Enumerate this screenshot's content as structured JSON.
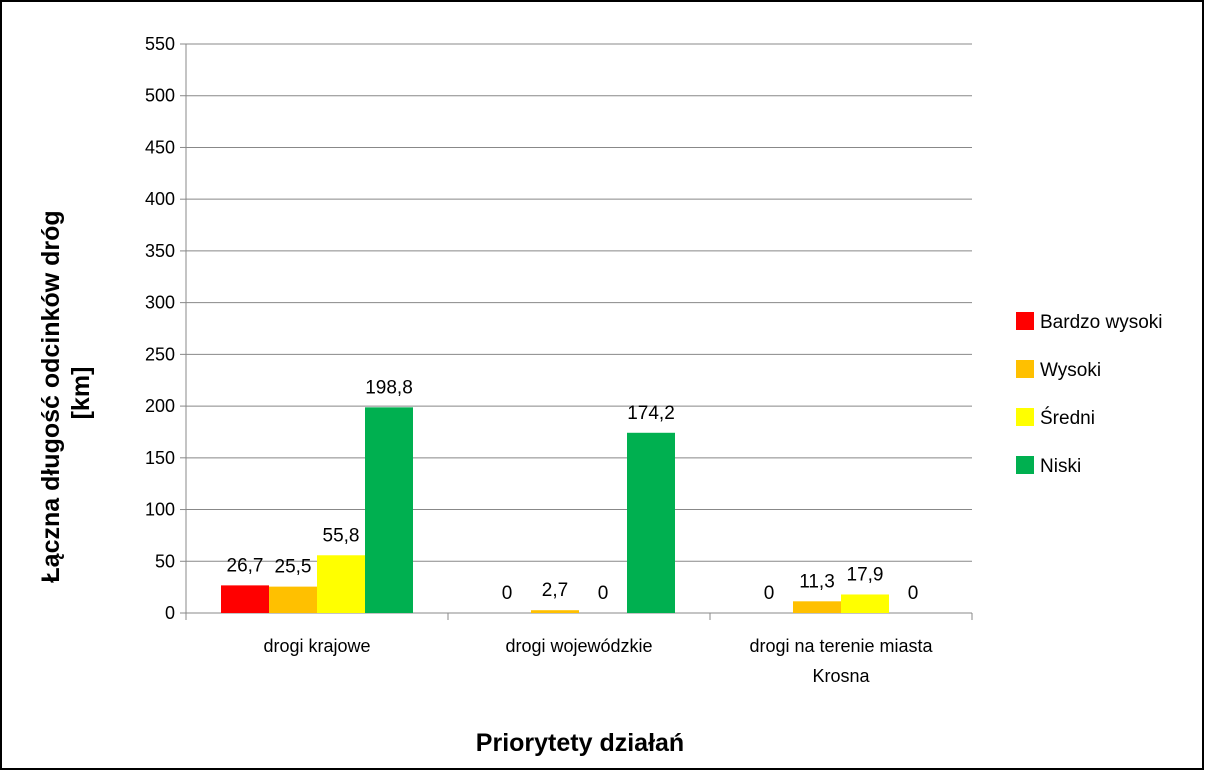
{
  "chart_data": {
    "type": "bar",
    "title": "",
    "xlabel": "Priorytety działań",
    "ylabel_lines": [
      "Łączna długość odcinków dróg",
      "[km]"
    ],
    "ylim": [
      0,
      550
    ],
    "yticks": [
      0,
      50,
      100,
      150,
      200,
      250,
      300,
      350,
      400,
      450,
      500,
      550
    ],
    "grid": true,
    "legend_position": "right",
    "categories": [
      [
        "drogi krajowe"
      ],
      [
        "drogi wojewódzkie"
      ],
      [
        "drogi na terenie miasta",
        "Krosna"
      ]
    ],
    "series": [
      {
        "name": "Bardzo wysoki",
        "color": "#ff0000",
        "values": [
          26.7,
          0,
          0
        ],
        "labels": [
          "26,7",
          "0",
          "0"
        ]
      },
      {
        "name": "Wysoki",
        "color": "#ffc000",
        "values": [
          25.5,
          2.7,
          11.3
        ],
        "labels": [
          "25,5",
          "2,7",
          "11,3"
        ]
      },
      {
        "name": "Średni",
        "color": "#ffff00",
        "values": [
          55.8,
          0,
          17.9
        ],
        "labels": [
          "55,8",
          "0",
          "17,9"
        ]
      },
      {
        "name": "Niski",
        "color": "#00b050",
        "values": [
          198.8,
          174.2,
          0
        ],
        "labels": [
          "198,8",
          "174,2",
          "0"
        ]
      }
    ]
  }
}
